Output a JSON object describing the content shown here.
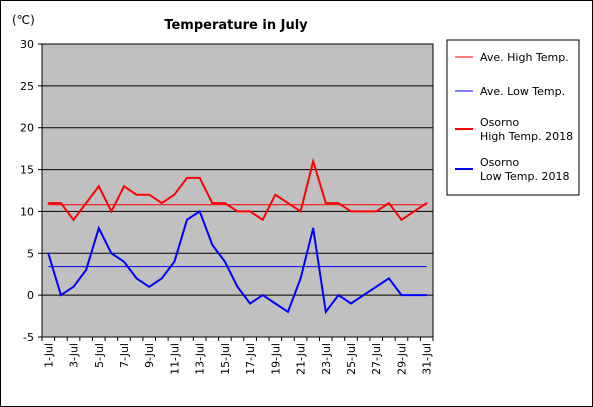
{
  "chart_data": {
    "type": "line",
    "title": "Temperature in July",
    "unit_label": "(℃)",
    "ylim": [
      -5,
      30
    ],
    "yticks": [
      30,
      25,
      20,
      15,
      10,
      5,
      0,
      -5
    ],
    "x": [
      "1-Jul",
      "2-Jul",
      "3-Jul",
      "4-Jul",
      "5-Jul",
      "6-Jul",
      "7-Jul",
      "8-Jul",
      "9-Jul",
      "10-Jul",
      "11-Jul",
      "12-Jul",
      "13-Jul",
      "14-Jul",
      "15-Jul",
      "16-Jul",
      "17-Jul",
      "18-Jul",
      "19-Jul",
      "20-Jul",
      "21-Jul",
      "22-Jul",
      "23-Jul",
      "24-Jul",
      "25-Jul",
      "26-Jul",
      "27-Jul",
      "28-Jul",
      "29-Jul",
      "30-Jul",
      "31-Jul"
    ],
    "xtick_labels": [
      "1-Jul",
      "3-Jul",
      "5-Jul",
      "7-Jul",
      "9-Jul",
      "11-Jul",
      "13-Jul",
      "15-Jul",
      "17-Jul",
      "19-Jul",
      "21-Jul",
      "23-Jul",
      "25-Jul",
      "27-Jul",
      "29-Jul",
      "31-Jul"
    ],
    "grid": true,
    "legend_position": "right",
    "plot_background": "#c0c0c0",
    "series": [
      {
        "name": "Ave. High Temp.",
        "color": "#ff0000",
        "style": "thin",
        "constant": 10.8
      },
      {
        "name": "Ave. Low Temp.",
        "color": "#0000ff",
        "style": "thin",
        "constant": 3.4
      },
      {
        "name": "Osorno High Temp. 2018",
        "legend_lines": [
          "Osorno",
          "High Temp. 2018"
        ],
        "color": "#ff0000",
        "style": "thick",
        "values": [
          11,
          11,
          9,
          11,
          13,
          10,
          13,
          12,
          12,
          11,
          12,
          14,
          14,
          11,
          11,
          10,
          10,
          9,
          12,
          11,
          10,
          16,
          11,
          11,
          10,
          10,
          10,
          11,
          9,
          10,
          11
        ]
      },
      {
        "name": "Osorno Low Temp. 2018",
        "legend_lines": [
          "Osorno",
          "Low Temp. 2018"
        ],
        "color": "#0000ff",
        "style": "thick",
        "values": [
          5,
          0,
          1,
          3,
          8,
          5,
          4,
          2,
          1,
          2,
          4,
          9,
          10,
          6,
          4,
          1,
          -1,
          0,
          -1,
          -2,
          2,
          8,
          -2,
          0,
          -1,
          0,
          1,
          2,
          0,
          0,
          0
        ]
      }
    ]
  }
}
